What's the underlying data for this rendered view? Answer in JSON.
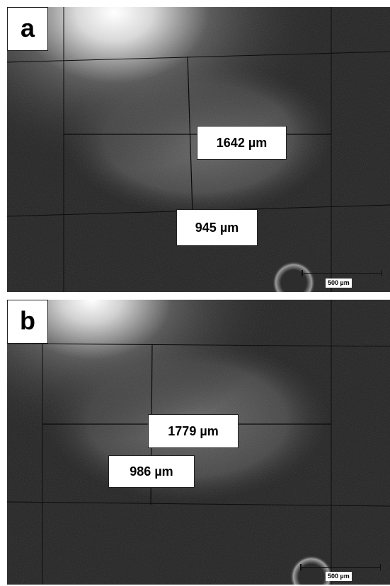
{
  "panels": [
    {
      "label": "a",
      "length_measurement": "1642 µm",
      "width_measurement": "945 µm",
      "scale_bar": "500 µm"
    },
    {
      "label": "b",
      "length_measurement": "1779 µm",
      "width_measurement": "986 µm",
      "scale_bar": "500 µm"
    }
  ]
}
